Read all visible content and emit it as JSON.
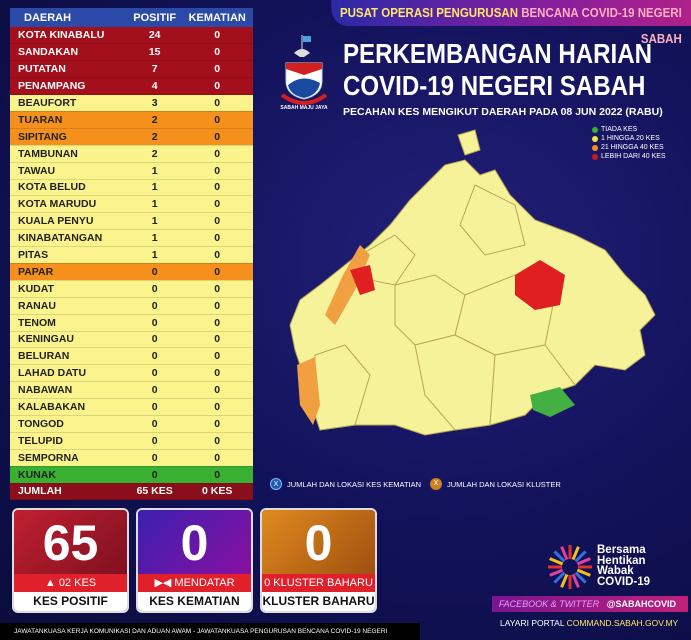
{
  "header": {
    "top_banner_a": "PUSAT OPERASI PENGURUSAN ",
    "top_banner_b": "BENCANA COVID-19 NEGERI SABAH",
    "title_line1": "PERKEMBANGAN HARIAN",
    "title_line2": "COVID-19 NEGERI SABAH",
    "subtitle": "PECAHAN KES MENGIKUT DAERAH PADA 08 JUN 2022 (RABU)",
    "crest_motto": "SABAH MAJU JAYA"
  },
  "legend": [
    {
      "label": "TIADA KES",
      "color": "#3ab033"
    },
    {
      "label": "1 HINGGA 20 KES",
      "color": "#f3e63a"
    },
    {
      "label": "21 HINGGA 40 KES",
      "color": "#f5901c"
    },
    {
      "label": "LEBIH DARI 40 KES",
      "color": "#c81a20"
    }
  ],
  "table": {
    "headers": [
      "DAERAH",
      "POSITIF",
      "KEMATIAN"
    ],
    "rows": [
      {
        "d": "KOTA KINABALU",
        "p": "24",
        "k": "0",
        "c": "r"
      },
      {
        "d": "SANDAKAN",
        "p": "15",
        "k": "0",
        "c": "r"
      },
      {
        "d": "PUTATAN",
        "p": "7",
        "k": "0",
        "c": "r"
      },
      {
        "d": "PENAMPANG",
        "p": "4",
        "k": "0",
        "c": "r"
      },
      {
        "d": "BEAUFORT",
        "p": "3",
        "k": "0",
        "c": "y"
      },
      {
        "d": "TUARAN",
        "p": "2",
        "k": "0",
        "c": "o"
      },
      {
        "d": "SIPITANG",
        "p": "2",
        "k": "0",
        "c": "o"
      },
      {
        "d": "TAMBUNAN",
        "p": "2",
        "k": "0",
        "c": "y"
      },
      {
        "d": "TAWAU",
        "p": "1",
        "k": "0",
        "c": "y"
      },
      {
        "d": "KOTA BELUD",
        "p": "1",
        "k": "0",
        "c": "y"
      },
      {
        "d": "KOTA MARUDU",
        "p": "1",
        "k": "0",
        "c": "y"
      },
      {
        "d": "KUALA PENYU",
        "p": "1",
        "k": "0",
        "c": "y"
      },
      {
        "d": "KINABATANGAN",
        "p": "1",
        "k": "0",
        "c": "y"
      },
      {
        "d": "PITAS",
        "p": "1",
        "k": "0",
        "c": "y"
      },
      {
        "d": "PAPAR",
        "p": "0",
        "k": "0",
        "c": "o"
      },
      {
        "d": "KUDAT",
        "p": "0",
        "k": "0",
        "c": "y"
      },
      {
        "d": "RANAU",
        "p": "0",
        "k": "0",
        "c": "y"
      },
      {
        "d": "TENOM",
        "p": "0",
        "k": "0",
        "c": "y"
      },
      {
        "d": "KENINGAU",
        "p": "0",
        "k": "0",
        "c": "y"
      },
      {
        "d": "BELURAN",
        "p": "0",
        "k": "0",
        "c": "y"
      },
      {
        "d": "LAHAD DATU",
        "p": "0",
        "k": "0",
        "c": "y"
      },
      {
        "d": "NABAWAN",
        "p": "0",
        "k": "0",
        "c": "y"
      },
      {
        "d": "KALABAKAN",
        "p": "0",
        "k": "0",
        "c": "y"
      },
      {
        "d": "TONGOD",
        "p": "0",
        "k": "0",
        "c": "y"
      },
      {
        "d": "TELUPID",
        "p": "0",
        "k": "0",
        "c": "y"
      },
      {
        "d": "SEMPORNA",
        "p": "0",
        "k": "0",
        "c": "y"
      },
      {
        "d": "KUNAK",
        "p": "0",
        "k": "0",
        "c": "g"
      }
    ],
    "total": {
      "d": "JUMLAH",
      "p": "65 KES",
      "k": "0 KES"
    }
  },
  "map_legend": {
    "deaths": "JUMLAH DAN LOKASI KES KEMATIAN",
    "deaths_mark": "X",
    "clusters": "JUMLAH DAN LOKASI KLUSTER",
    "clusters_mark": "X"
  },
  "stats": [
    {
      "value": "65",
      "change": "▲  02 KES",
      "label": "KES POSITIF"
    },
    {
      "value": "0",
      "change": "▶◀ MENDATAR",
      "label": "KES KEMATIAN"
    },
    {
      "value": "0",
      "change": "0 KLUSTER BAHARU",
      "label": "KLUSTER BAHARU"
    }
  ],
  "campaign": [
    "Bersama",
    "Hentikan",
    "Wabak",
    "COVID-19"
  ],
  "social": {
    "label": "FACEBOOK & TWITTER",
    "handle_a": "@SABAH",
    "handle_b": "COVID"
  },
  "portal": {
    "label": "LAYARI PORTAL ",
    "url": "COMMAND.SABAH.GOV.MY"
  },
  "footer": "JAWATANKUASA KERJA KOMUNIKASI DAN ADUAN AWAM - JAWATANKUASA PENGURUSAN BENCANA COVID-19 NEGERI"
}
